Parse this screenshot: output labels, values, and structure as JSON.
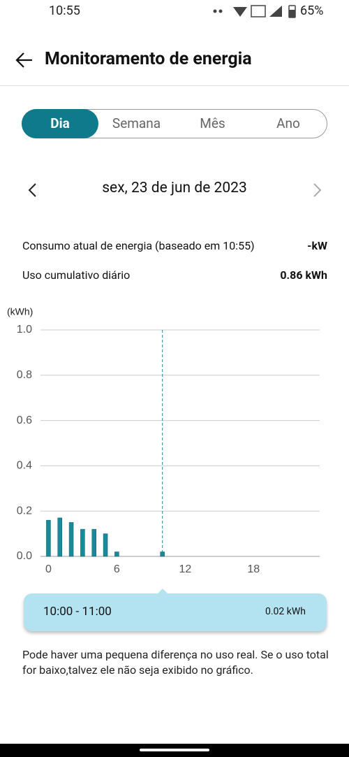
{
  "status_bar": {
    "time": "10:55",
    "battery": "65%"
  },
  "header": {
    "title": "Monitoramento de energia"
  },
  "tabs": {
    "items": [
      "Dia",
      "Semana",
      "Mês",
      "Ano"
    ],
    "selected": 0
  },
  "date": "sex, 23 de jun de 2023",
  "stats": [
    {
      "label": "Consumo atual de energia (baseado em 10:55)",
      "value": "-kW"
    },
    {
      "label": "Uso cumulativo diário",
      "value": "0.86 kWh"
    }
  ],
  "chart_data": {
    "type": "bar",
    "y_label": "(kWh)",
    "x": [
      0,
      1,
      2,
      3,
      4,
      5,
      6,
      10
    ],
    "values": [
      0.16,
      0.17,
      0.15,
      0.12,
      0.12,
      0.1,
      0.02,
      0.02
    ],
    "color": "#1a8a9a",
    "xlim": [
      -0.7,
      23.8
    ],
    "xticks": [
      0,
      6,
      12,
      18
    ],
    "ylim": [
      0,
      1
    ],
    "yticks": [
      {
        "value": 0,
        "label": "0.0"
      },
      0.2,
      0.4,
      0.6,
      0.8,
      {
        "value": 1,
        "label": "1.0"
      }
    ],
    "grid": true,
    "highlight_x": 10
  },
  "tooltip": {
    "range": "10:00 - 11:00",
    "value": "0.02 kWh"
  },
  "note": "Pode haver uma pequena diferença no uso real. Se o uso total for baixo,talvez ele não seja exibido no gráfico."
}
